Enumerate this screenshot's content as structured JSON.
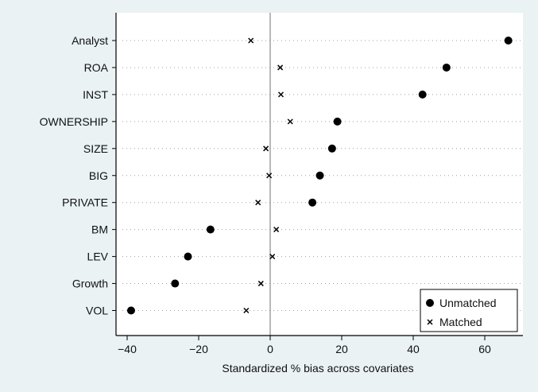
{
  "chart_data": {
    "type": "scatter",
    "title": "",
    "xlabel": "Standardized % bias across covariates",
    "ylabel": "",
    "xlim": [
      -42,
      70
    ],
    "xticks": [
      -40,
      -20,
      0,
      20,
      40,
      60
    ],
    "categories": [
      "Analyst",
      "ROA",
      "INST",
      "OWNERSHIP",
      "SIZE",
      "BIG",
      "PRIVATE",
      "BM",
      "LEV",
      "Growth",
      "VOL"
    ],
    "series": [
      {
        "name": "Unmatched",
        "marker": "filled-circle",
        "values": [
          66.6,
          49.3,
          42.6,
          18.8,
          17.3,
          13.9,
          11.8,
          -16.7,
          -23.0,
          -26.6,
          -38.9
        ]
      },
      {
        "name": "Matched",
        "marker": "x",
        "values": [
          -5.4,
          2.8,
          3.0,
          5.6,
          -1.2,
          -0.3,
          -3.4,
          1.7,
          0.6,
          -2.6,
          -6.7
        ]
      }
    ],
    "zero_reference_line": true,
    "grid": "dotted horizontal lines per category",
    "legend_position": "bottom-right",
    "colors": {
      "background": "#eaf2f3",
      "plot_area": "#ffffff",
      "marker": "#000000",
      "axis": "#000000",
      "reference_line": "#8a8a8a",
      "gridline": "#a0a0a0"
    }
  }
}
